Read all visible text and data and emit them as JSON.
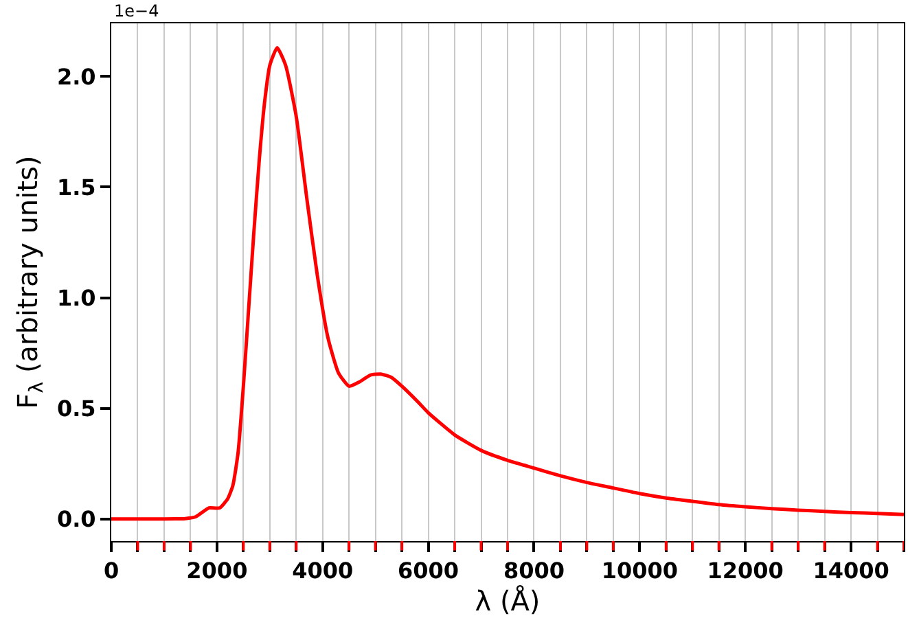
{
  "chart_data": {
    "type": "line",
    "xlabel": "λ (Å)",
    "ylabel": "F$_{λ}$ (arbitrary units)",
    "annotations": [
      "1e−4"
    ],
    "x": [
      0,
      1000,
      1400,
      1600,
      1750,
      1850,
      2050,
      2200,
      2300,
      2400,
      2500,
      2600,
      2700,
      2800,
      2900,
      3000,
      3140,
      3300,
      3500,
      3700,
      3900,
      4100,
      4300,
      4500,
      4700,
      4900,
      5100,
      5300,
      5500,
      5800,
      6000,
      6500,
      7000,
      7500,
      8000,
      8500,
      9000,
      9500,
      10000,
      10500,
      11000,
      11500,
      12000,
      12500,
      13000,
      13500,
      14000,
      14500,
      15000
    ],
    "series": [
      {
        "color": "#ff0000",
        "values": [
          0,
          0,
          0.002,
          0.01,
          0.035,
          0.05,
          0.05,
          0.09,
          0.15,
          0.3,
          0.6,
          0.95,
          1.3,
          1.62,
          1.88,
          2.05,
          2.13,
          2.05,
          1.82,
          1.45,
          1.1,
          0.82,
          0.66,
          0.6,
          0.62,
          0.65,
          0.655,
          0.64,
          0.6,
          0.53,
          0.48,
          0.38,
          0.31,
          0.265,
          0.23,
          0.195,
          0.165,
          0.14,
          0.115,
          0.095,
          0.08,
          0.065,
          0.055,
          0.047,
          0.04,
          0.034,
          0.029,
          0.025,
          0.02
        ]
      }
    ],
    "xlim": [
      0,
      15000
    ],
    "xticks": [
      0,
      {
        "value": 500,
        "label": null
      },
      {
        "value": 1000,
        "label": null
      },
      {
        "value": 1500,
        "label": null
      },
      2000,
      {
        "value": 2500,
        "label": null
      },
      {
        "value": 3000,
        "label": null
      },
      {
        "value": 3500,
        "label": null
      },
      4000,
      {
        "value": 4500,
        "label": null
      },
      {
        "value": 5000,
        "label": null
      },
      {
        "value": 5500,
        "label": null
      },
      6000,
      {
        "value": 6500,
        "label": null
      },
      {
        "value": 7000,
        "label": null
      },
      {
        "value": 7500,
        "label": null
      },
      8000,
      {
        "value": 8500,
        "label": null
      },
      {
        "value": 9000,
        "label": null
      },
      {
        "value": 9500,
        "label": null
      },
      10000,
      {
        "value": 10500,
        "label": null
      },
      {
        "value": 11000,
        "label": null
      },
      {
        "value": 11500,
        "label": null
      },
      12000,
      {
        "value": 12500,
        "label": null
      },
      {
        "value": 13000,
        "label": null
      },
      {
        "value": 13500,
        "label": null
      },
      14000,
      {
        "value": 14500,
        "label": null
      },
      {
        "value": 15000,
        "label": null
      }
    ],
    "ylim": [
      -0.1,
      2.24
    ],
    "yticks": [
      {
        "value": 0,
        "label": "0.0"
      },
      {
        "value": 0.5,
        "label": "0.5"
      },
      {
        "value": 1,
        "label": "1.0"
      },
      {
        "value": 1.5,
        "label": "1.5"
      },
      {
        "value": 2,
        "label": "2.0"
      }
    ],
    "grid": "x",
    "marker": "none",
    "line_style": "solid"
  }
}
